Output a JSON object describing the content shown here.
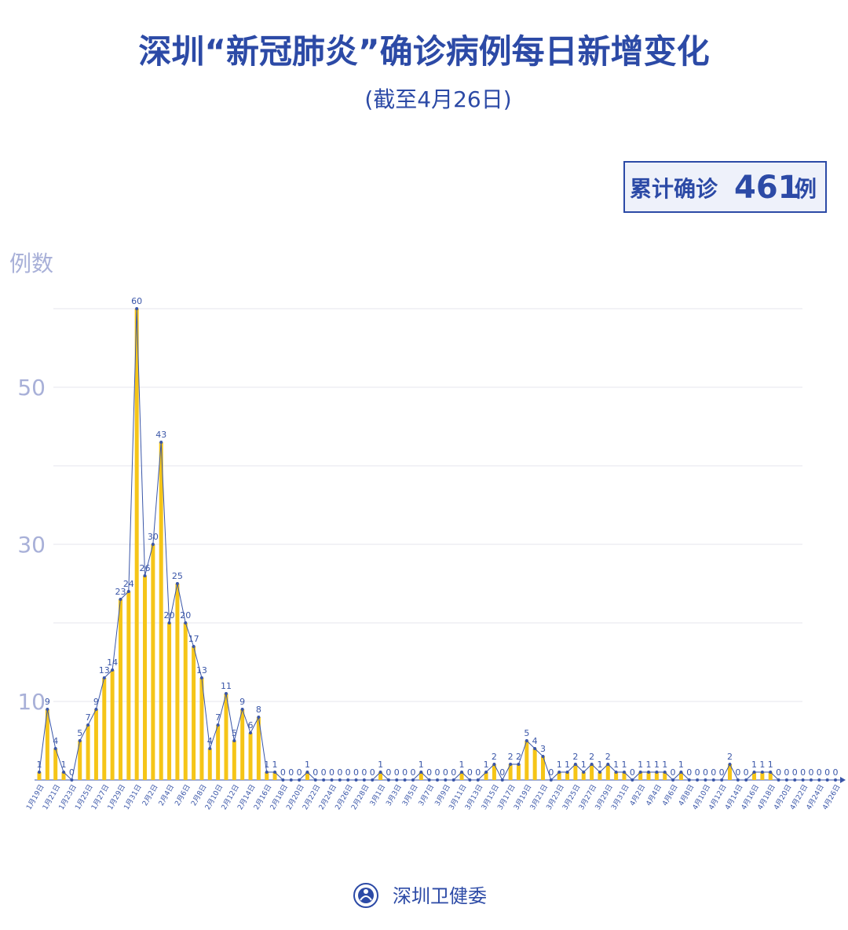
{
  "chart_data": {
    "type": "bar-line",
    "title": "深圳“新冠肺炎”确诊病例每日新增变化",
    "subtitle": "(截至4月26日)",
    "total": {
      "prefix": "累计确诊",
      "value": 461,
      "suffix": "例"
    },
    "y_label": "例数",
    "source": "深圳卫健委",
    "categories": [
      "1月19日",
      null,
      "1月21日",
      null,
      "1月23日",
      null,
      "1月25日",
      null,
      "1月27日",
      null,
      "1月29日",
      null,
      "1月31日",
      null,
      "2月2日",
      null,
      "2月4日",
      null,
      "2月6日",
      null,
      "2月8日",
      null,
      "2月10日",
      null,
      "2月12日",
      null,
      "2月14日",
      null,
      "2月16日",
      null,
      "2月18日",
      null,
      "2月20日",
      null,
      "2月22日",
      null,
      "2月24日",
      null,
      "2月26日",
      null,
      "2月28日",
      null,
      "3月1日",
      null,
      "3月3日",
      null,
      "3月5日",
      null,
      "3月7日",
      null,
      "3月9日",
      null,
      "3月11日",
      null,
      "3月13日",
      null,
      "3月15日",
      null,
      "3月17日",
      null,
      "3月19日",
      null,
      "3月21日",
      null,
      "3月23日",
      null,
      "3月25日",
      null,
      "3月27日",
      null,
      "3月29日",
      null,
      "3月31日",
      null,
      "4月2日",
      null,
      "4月4日",
      null,
      "4月6日",
      null,
      "4月8日",
      null,
      "4月10日",
      null,
      "4月12日",
      null,
      "4月14日",
      null,
      "4月16日",
      null,
      "4月18日",
      null,
      "4月20日",
      null,
      "4月22日",
      null,
      "4月24日",
      null,
      "4月26日"
    ],
    "values": [
      1,
      9,
      4,
      1,
      0,
      5,
      7,
      9,
      13,
      14,
      23,
      24,
      60,
      26,
      30,
      43,
      20,
      25,
      20,
      17,
      13,
      4,
      7,
      11,
      5,
      9,
      6,
      8,
      1,
      1,
      0,
      0,
      0,
      1,
      0,
      0,
      0,
      0,
      0,
      0,
      0,
      0,
      1,
      0,
      0,
      0,
      0,
      1,
      0,
      0,
      0,
      0,
      1,
      0,
      0,
      1,
      2,
      0,
      2,
      2,
      5,
      4,
      3,
      0,
      1,
      1,
      2,
      1,
      2,
      1,
      2,
      1,
      1,
      0,
      1,
      1,
      1,
      1,
      0,
      1,
      0,
      0,
      0,
      0,
      0,
      2,
      0,
      0,
      1,
      1,
      1,
      0,
      0,
      0,
      0,
      0,
      0,
      0,
      0
    ],
    "bar_color": "#f5c518",
    "line_color": "#3a56a8",
    "ylim": [
      0,
      60
    ],
    "yticks": [
      10,
      30,
      50
    ],
    "grid": true,
    "minor_grid": true
  }
}
